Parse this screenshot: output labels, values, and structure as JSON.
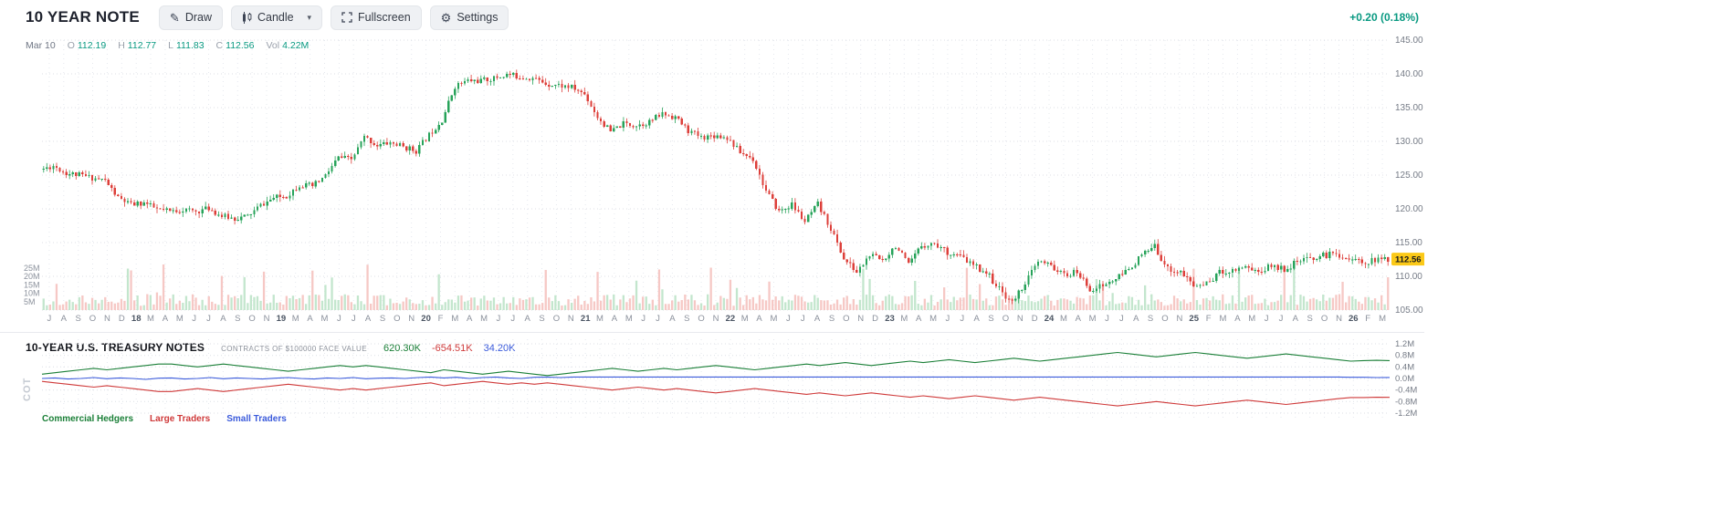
{
  "toolbar": {
    "title": "10 YEAR NOTE",
    "draw_label": "Draw",
    "candle_label": "Candle",
    "fullscreen_label": "Fullscreen",
    "settings_label": "Settings",
    "change_text": "+0.20 (0.18%)"
  },
  "ohlc": {
    "date": "Mar 10",
    "open_label": "O",
    "open": "112.19",
    "high_label": "H",
    "high": "112.77",
    "low_label": "L",
    "low": "111.83",
    "close_label": "C",
    "close": "112.56",
    "vol_label": "Vol",
    "volume": "4.22M"
  },
  "price_axis": [
    "145.00",
    "140.00",
    "135.00",
    "130.00",
    "125.00",
    "120.00",
    "115.00",
    "110.00",
    "105.00"
  ],
  "volume_axis": [
    "25M",
    "20M",
    "15M",
    "10M",
    "5M"
  ],
  "last_price_tag": "112.56",
  "time_axis": [
    "J",
    "A",
    "S",
    "O",
    "N",
    "D",
    "18",
    "M",
    "A",
    "M",
    "J",
    "J",
    "A",
    "S",
    "O",
    "N",
    "19",
    "M",
    "A",
    "M",
    "J",
    "J",
    "A",
    "S",
    "O",
    "N",
    "20",
    "F",
    "M",
    "A",
    "M",
    "J",
    "J",
    "A",
    "S",
    "O",
    "N",
    "21",
    "M",
    "A",
    "M",
    "J",
    "J",
    "A",
    "S",
    "O",
    "N",
    "22",
    "M",
    "A",
    "M",
    "J",
    "J",
    "A",
    "S",
    "O",
    "N",
    "D",
    "23",
    "M",
    "A",
    "M",
    "J",
    "J",
    "A",
    "S",
    "O",
    "N",
    "D",
    "24",
    "M",
    "A",
    "M",
    "J",
    "J",
    "A",
    "S",
    "O",
    "N",
    "25",
    "F",
    "M",
    "A",
    "M",
    "J",
    "J",
    "A",
    "S",
    "O",
    "N",
    "26",
    "F",
    "M"
  ],
  "cot": {
    "title": "10-YEAR U.S. TREASURY NOTES",
    "subtitle": "CONTRACTS OF $100000 FACE VALUE",
    "side_label": "COT",
    "values": {
      "commercial": "620.30K",
      "large": "-654.51K",
      "small": "34.20K"
    },
    "axis": [
      "1.2M",
      "0.8M",
      "0.4M",
      "0.0M",
      "-0.4M",
      "-0.8M",
      "-1.2M"
    ],
    "legend": [
      {
        "label": "Commercial Hedgers",
        "color": "#1a7f37"
      },
      {
        "label": "Large Traders",
        "color": "#cf3a3a"
      },
      {
        "label": "Small Traders",
        "color": "#3b5bdb"
      }
    ]
  },
  "colors": {
    "accent_green": "#089981",
    "up": "#27a35a",
    "down": "#dd3f3a",
    "vol_up": "#c3e6cd",
    "vol_down": "#f6c8c5",
    "grid": "#dcdfe6",
    "grid_light": "#e5e8ee",
    "axis_text": "#757b86",
    "month_text": "#8b919c",
    "year_text": "#4b5563",
    "tag_bg": "#fbc918"
  },
  "chart_data": [
    {
      "type": "candlestick",
      "title": "10 YEAR NOTE",
      "x_start": "Jul 2017",
      "x_end": "Mar 2026",
      "frequency": "monthly anchor closes read from chart (candles are weekly)",
      "ylim": [
        105,
        145
      ],
      "y_ticks": [
        145,
        140,
        135,
        130,
        125,
        120,
        115,
        110,
        105
      ],
      "monthly_close": [
        125.8,
        126.4,
        125.3,
        125.0,
        124.6,
        124.2,
        121.6,
        120.6,
        120.9,
        119.9,
        119.6,
        119.9,
        119.6,
        120.1,
        118.9,
        118.6,
        118.9,
        120.5,
        121.6,
        121.9,
        123.6,
        123.3,
        124.9,
        127.6,
        127.3,
        130.6,
        129.4,
        129.8,
        129.2,
        128.6,
        131.0,
        133.2,
        138.2,
        139.0,
        139.0,
        139.3,
        139.9,
        139.6,
        139.4,
        138.6,
        138.3,
        138.0,
        137.0,
        133.6,
        131.4,
        132.6,
        132.4,
        132.9,
        134.1,
        133.6,
        131.6,
        130.6,
        130.9,
        130.6,
        128.4,
        127.4,
        122.6,
        119.6,
        120.6,
        118.1,
        120.6,
        117.1,
        112.6,
        110.6,
        113.1,
        112.4,
        114.6,
        111.6,
        114.6,
        114.9,
        113.6,
        112.9,
        111.6,
        110.6,
        108.1,
        106.1,
        109.1,
        112.1,
        111.6,
        110.1,
        110.6,
        108.1,
        108.6,
        109.6,
        111.1,
        113.1,
        114.4,
        111.1,
        110.6,
        108.6,
        108.9,
        110.6,
        110.9,
        111.6,
        110.6,
        111.6,
        111.1,
        112.1,
        112.6,
        113.1,
        113.4,
        112.6,
        112.1,
        112.4,
        112.56
      ],
      "last_bar": {
        "date": "Mar 10",
        "open": 112.19,
        "high": 112.77,
        "low": 111.83,
        "close": 112.56,
        "volume": "4.22M"
      },
      "volume_axis_m": [
        25,
        20,
        15,
        10,
        5
      ],
      "volume_range_m": [
        2,
        28
      ]
    },
    {
      "type": "line",
      "title": "10-YEAR U.S. TREASURY NOTES (COT)",
      "subtitle": "CONTRACTS OF $100000 FACE VALUE",
      "units": "millions of contracts",
      "ylim": [
        -1.2,
        1.2
      ],
      "y_ticks": [
        1.2,
        0.8,
        0.4,
        0.0,
        -0.4,
        -0.8,
        -1.2
      ],
      "x_start": "Jul 2017",
      "x_end": "Mar 2026",
      "series": [
        {
          "name": "Commercial Hedgers",
          "color": "#1a7f37",
          "latest": "620.30K",
          "values": [
            0.15,
            0.2,
            0.25,
            0.3,
            0.35,
            0.3,
            0.35,
            0.4,
            0.45,
            0.5,
            0.5,
            0.45,
            0.4,
            0.45,
            0.5,
            0.45,
            0.4,
            0.35,
            0.3,
            0.25,
            0.3,
            0.35,
            0.4,
            0.45,
            0.4,
            0.45,
            0.4,
            0.35,
            0.3,
            0.25,
            0.2,
            0.3,
            0.25,
            0.2,
            0.15,
            0.2,
            0.25,
            0.2,
            0.15,
            0.1,
            0.15,
            0.2,
            0.25,
            0.3,
            0.35,
            0.3,
            0.25,
            0.3,
            0.35,
            0.3,
            0.35,
            0.4,
            0.45,
            0.4,
            0.35,
            0.3,
            0.35,
            0.4,
            0.45,
            0.5,
            0.45,
            0.5,
            0.55,
            0.5,
            0.45,
            0.5,
            0.55,
            0.6,
            0.55,
            0.6,
            0.65,
            0.6,
            0.55,
            0.6,
            0.65,
            0.7,
            0.65,
            0.6,
            0.65,
            0.7,
            0.75,
            0.8,
            0.85,
            0.9,
            0.85,
            0.8,
            0.75,
            0.8,
            0.85,
            0.9,
            0.85,
            0.8,
            0.75,
            0.7,
            0.75,
            0.8,
            0.85,
            0.8,
            0.75,
            0.7,
            0.65,
            0.6,
            0.62,
            0.63,
            0.62
          ]
        },
        {
          "name": "Large Traders",
          "color": "#cf3a3a",
          "latest": "-654.51K",
          "values": [
            -0.1,
            -0.15,
            -0.2,
            -0.25,
            -0.3,
            -0.25,
            -0.3,
            -0.35,
            -0.4,
            -0.45,
            -0.45,
            -0.4,
            -0.35,
            -0.4,
            -0.45,
            -0.4,
            -0.35,
            -0.3,
            -0.25,
            -0.2,
            -0.25,
            -0.3,
            -0.35,
            -0.4,
            -0.35,
            -0.4,
            -0.35,
            -0.3,
            -0.25,
            -0.2,
            -0.15,
            -0.25,
            -0.2,
            -0.15,
            -0.1,
            -0.15,
            -0.2,
            -0.15,
            -0.2,
            -0.15,
            -0.2,
            -0.25,
            -0.3,
            -0.35,
            -0.4,
            -0.35,
            -0.3,
            -0.35,
            -0.4,
            -0.35,
            -0.4,
            -0.45,
            -0.5,
            -0.45,
            -0.4,
            -0.35,
            -0.4,
            -0.45,
            -0.5,
            -0.55,
            -0.5,
            -0.55,
            -0.6,
            -0.55,
            -0.5,
            -0.55,
            -0.6,
            -0.65,
            -0.6,
            -0.65,
            -0.7,
            -0.65,
            -0.6,
            -0.65,
            -0.7,
            -0.75,
            -0.7,
            -0.65,
            -0.7,
            -0.75,
            -0.8,
            -0.85,
            -0.9,
            -0.95,
            -0.9,
            -0.85,
            -0.8,
            -0.85,
            -0.9,
            -0.95,
            -0.9,
            -0.85,
            -0.8,
            -0.75,
            -0.8,
            -0.85,
            -0.9,
            -0.85,
            -0.8,
            -0.75,
            -0.7,
            -0.66,
            -0.66,
            -0.65,
            -0.654
          ]
        },
        {
          "name": "Small Traders",
          "color": "#3b5bdb",
          "latest": "34.20K",
          "values": [
            0.0,
            0.02,
            -0.02,
            0.0,
            0.03,
            -0.01,
            0.02,
            0.0,
            -0.03,
            0.01,
            0.02,
            -0.02,
            0.0,
            0.03,
            -0.01,
            0.02,
            0.0,
            -0.02,
            0.01,
            0.03,
            0.0,
            -0.02,
            0.02,
            0.0,
            0.03,
            -0.01,
            0.01,
            0.02,
            0.0,
            0.03,
            0.05,
            0.02,
            0.04,
            0.0,
            0.03,
            0.05,
            0.02,
            0.0,
            0.04,
            0.05,
            0.03,
            0.05,
            0.05,
            0.05,
            0.05,
            0.05,
            0.05,
            0.05,
            0.05,
            0.05,
            0.05,
            0.05,
            0.05,
            0.05,
            0.05,
            0.05,
            0.05,
            0.05,
            0.05,
            0.05,
            0.05,
            0.05,
            0.05,
            0.05,
            0.05,
            0.05,
            0.05,
            0.05,
            0.05,
            0.05,
            0.05,
            0.05,
            0.05,
            0.05,
            0.05,
            0.05,
            0.05,
            0.05,
            0.05,
            0.05,
            0.05,
            0.05,
            0.05,
            0.05,
            0.05,
            0.05,
            0.05,
            0.05,
            0.05,
            0.05,
            0.05,
            0.05,
            0.05,
            0.05,
            0.05,
            0.05,
            0.05,
            0.05,
            0.05,
            0.05,
            0.05,
            0.04,
            0.04,
            0.03,
            0.034
          ]
        }
      ],
      "legend_position": "bottom-left"
    }
  ]
}
